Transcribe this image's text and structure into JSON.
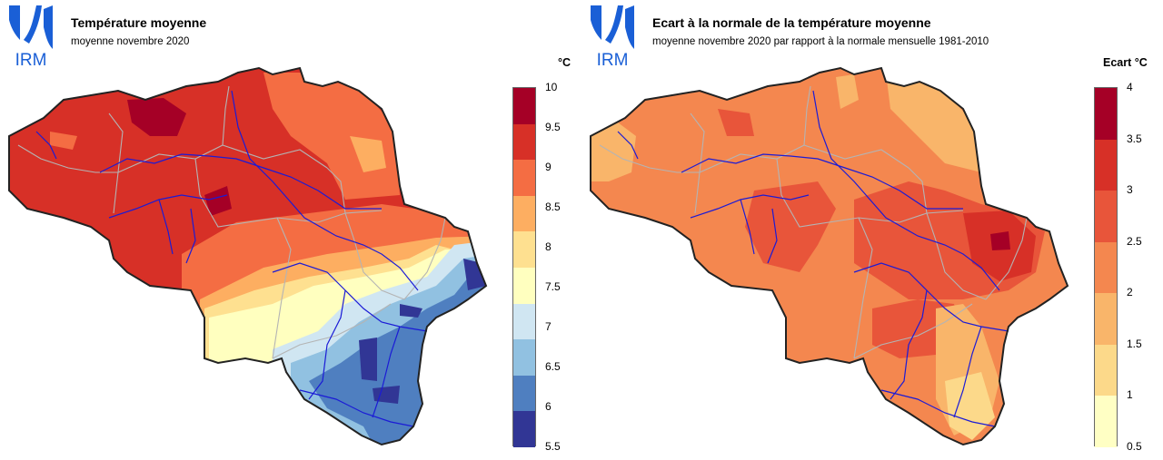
{
  "logo_text": "IRM",
  "brand_color": "#1a5fd6",
  "left": {
    "title": "Température moyenne",
    "subtitle": "moyenne novembre 2020",
    "unit": "°C",
    "legend": {
      "ticks": [
        "10",
        "9.5",
        "9",
        "8.5",
        "8",
        "7.5",
        "7",
        "6.5",
        "6",
        "5.5"
      ],
      "colors": [
        "#a50026",
        "#d73027",
        "#f46d43",
        "#fdae61",
        "#fee090",
        "#ffffbf",
        "#d0e6f2",
        "#91c1e1",
        "#4f7fc0",
        "#313695"
      ]
    }
  },
  "right": {
    "title": "Ecart à la normale de la température moyenne",
    "subtitle": "moyenne novembre 2020 par rapport à la normale mensuelle 1981-2010",
    "unit": "Ecart °C",
    "legend": {
      "ticks": [
        "4",
        "3.5",
        "3",
        "2.5",
        "2",
        "1.5",
        "1",
        "0.5"
      ],
      "colors": [
        "#a50026",
        "#d73027",
        "#e8553a",
        "#f4874f",
        "#f9b56a",
        "#fcd98a",
        "#ffffc4"
      ]
    }
  }
}
